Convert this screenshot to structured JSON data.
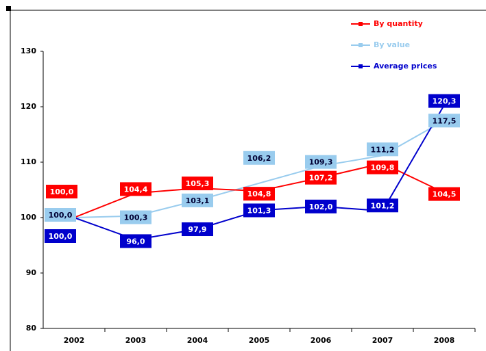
{
  "chart_data": {
    "type": "line",
    "categories": [
      "2002",
      "2003",
      "2004",
      "2005",
      "2006",
      "2007",
      "2008"
    ],
    "series": [
      {
        "name": "By quantity",
        "color": "#ff0000",
        "values": [
          100.0,
          104.4,
          105.3,
          104.8,
          107.2,
          109.8,
          104.5
        ],
        "value_labels": [
          "100,0",
          "104,4",
          "105,3",
          "104,8",
          "107,2",
          "109,8",
          "104,5"
        ]
      },
      {
        "name": "By value",
        "color": "#99ccee",
        "values": [
          100.0,
          100.3,
          103.1,
          106.2,
          109.3,
          111.2,
          117.5
        ],
        "value_labels": [
          "100,0",
          "100,3",
          "103,1",
          "106,2",
          "109,3",
          "111,2",
          "117,5"
        ]
      },
      {
        "name": "Average prices",
        "color": "#0000cc",
        "values": [
          100.0,
          96.0,
          97.9,
          101.3,
          102.0,
          101.2,
          120.3
        ],
        "value_labels": [
          "100,0",
          "96,0",
          "97,9",
          "101,3",
          "102,0",
          "101,2",
          "120,3"
        ]
      }
    ],
    "ylim": [
      80,
      130
    ],
    "yticks": [
      80,
      90,
      100,
      110,
      120,
      130
    ],
    "legend": "top-right"
  }
}
